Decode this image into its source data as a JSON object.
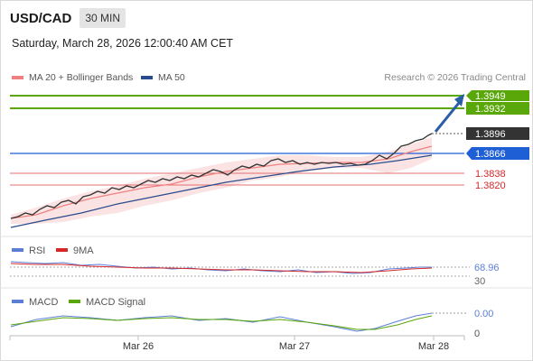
{
  "header": {
    "pair": "USD/CAD",
    "timeframe": "30 MIN"
  },
  "datetime": "Saturday, March 28, 2026 12:00:40 AM CET",
  "legend": {
    "items": [
      {
        "label": "MA 20 + Bollinger Bands",
        "color": "#f08080"
      },
      {
        "label": "MA 50",
        "color": "#2b4c8c"
      }
    ],
    "credit": "Research © 2026 Trading Central"
  },
  "price_levels": [
    {
      "value": "1.3949",
      "kind": "target",
      "color": "#5aa70a"
    },
    {
      "value": "1.3932",
      "kind": "target",
      "color": "#5aa70a"
    },
    {
      "value": "1.3896",
      "kind": "last",
      "color": "#333333"
    },
    {
      "value": "1.3866",
      "kind": "pivot",
      "color": "#1f5fd6"
    },
    {
      "value": "1.3838",
      "kind": "support",
      "color": "#d62728"
    },
    {
      "value": "1.3820",
      "kind": "support",
      "color": "#d62728"
    }
  ],
  "rsi": {
    "label": "RSI",
    "ma_label": "9MA",
    "value": "68.96",
    "level_low": "30",
    "colors": {
      "rsi": "#5b7fd6",
      "ma": "#d62728"
    }
  },
  "macd": {
    "label": "MACD",
    "signal_label": "MACD Signal",
    "value": "0.00",
    "zero": "0",
    "colors": {
      "macd": "#5b7fd6",
      "signal": "#5aa70a"
    }
  },
  "x_axis": [
    "Mar 26",
    "Mar 27",
    "Mar 28"
  ],
  "chart_data": {
    "type": "line",
    "series": [
      {
        "name": "MA 20 + Bollinger Bands"
      },
      {
        "name": "MA 50"
      }
    ],
    "x": [
      "Mar 26",
      "Mar 27",
      "Mar 28"
    ]
  }
}
